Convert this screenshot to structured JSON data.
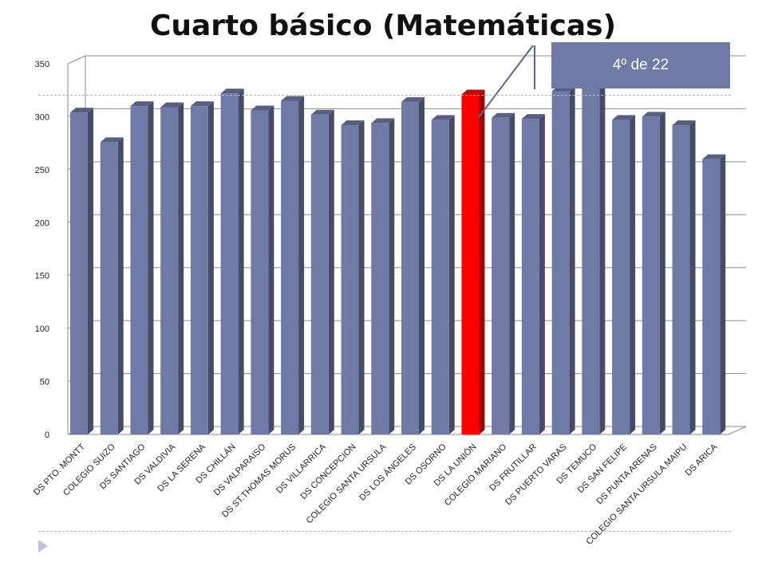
{
  "slide": {
    "title": "Cuarto básico (Matemáticas)",
    "callout": "4º de 22"
  },
  "colors": {
    "bar": "#6f7aa7",
    "bar_highlight": "#ff0000",
    "axis": "#8c8c8c",
    "grid": "#8c8c8c"
  },
  "chart_data": {
    "type": "bar",
    "title": "Cuarto básico (Matemáticas)",
    "xlabel": "",
    "ylabel": "",
    "ylim": [
      0,
      350
    ],
    "yticks": [
      "0",
      "50",
      "100",
      "150",
      "200",
      "250",
      "300",
      "350"
    ],
    "grid": true,
    "legend": "none",
    "highlight_category": "DS LA UNIÓN",
    "categories": [
      "DS PTO. MONTT",
      "COLEGIO SUIZO",
      "DS SANTIAGO",
      "DS VALDIVIA",
      "DS LA SERENA",
      "DS CHILLÁN",
      "DS VALPARAISO",
      "DS ST.THOMAS MORUS",
      "DS VILLARRICA",
      "DS CONCEPCION",
      "COLEGIO SANTA URSULA",
      "DS LOS ÁNGELES",
      "DS OSORNO",
      "DS LA UNIÓN",
      "COLEGIO MARIANO",
      "DS FRUTILLAR",
      "DS PUERTO VARAS",
      "DS TEMUCO",
      "DS SAN FELIPE",
      "DS PUNTA ARENAS",
      "COLEGIO SANTA URSULA MAIPU",
      "DS ARICA"
    ],
    "values": [
      304,
      276,
      310,
      309,
      310,
      322,
      306,
      315,
      302,
      292,
      294,
      314,
      297,
      321,
      299,
      298,
      324,
      327,
      297,
      300,
      292,
      260
    ]
  }
}
